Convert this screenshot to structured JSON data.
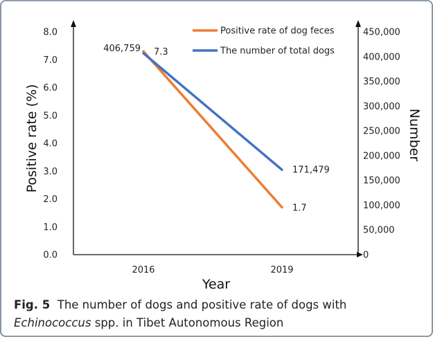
{
  "chart_data": {
    "type": "line",
    "x_label": "Year",
    "y_left_label": "Positive rate (%)",
    "y_right_label": "Number",
    "categories": [
      "2016",
      "2019"
    ],
    "y_left_ticks": [
      "0.0",
      "1.0",
      "2.0",
      "3.0",
      "4.0",
      "5.0",
      "6.0",
      "7.0",
      "8.0"
    ],
    "y_right_ticks": [
      "0",
      "50,000",
      "100,000",
      "150,000",
      "200,000",
      "250,000",
      "300,000",
      "350,000",
      "400,000",
      "450,000"
    ],
    "y_left_range": [
      0,
      8
    ],
    "y_right_range": [
      0,
      450000
    ],
    "series": [
      {
        "name": "Positive rate of dog feces",
        "axis": "left",
        "color": "#ED7D31",
        "values": [
          7.3,
          1.7
        ],
        "labels": [
          "7.3",
          "1.7"
        ]
      },
      {
        "name": "The number of total dogs",
        "axis": "right",
        "color": "#4472C4",
        "values": [
          406759,
          171479
        ],
        "labels": [
          "406,759",
          "171,479"
        ]
      }
    ],
    "legend_position": "top-right",
    "grid": false
  },
  "caption": {
    "label": "Fig. 5",
    "text_line1": "The number of dogs and positive rate of dogs with",
    "genus": "Echinococcus",
    "text_line2": "spp. in Tibet Autonomous Region"
  }
}
